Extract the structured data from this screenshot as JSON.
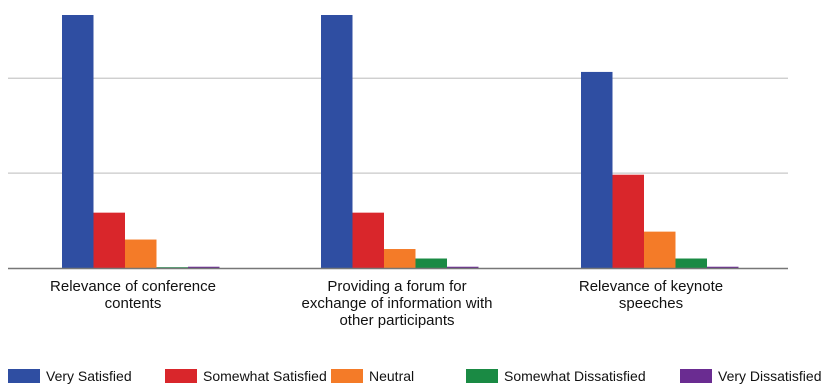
{
  "chart_data": {
    "type": "bar",
    "categories": [
      [
        "Relevance of conference",
        "contents"
      ],
      [
        "Providing a forum for",
        "exchange of information with",
        "other participants"
      ],
      [
        "Relevance of keynote",
        "speeches"
      ]
    ],
    "series": [
      {
        "name": "Very Satisfied",
        "color": "#2f4ea2",
        "values": [
          80,
          80,
          62
        ]
      },
      {
        "name": "Somewhat Satisfied",
        "color": "#d9262b",
        "values": [
          17.5,
          17.5,
          29.5
        ]
      },
      {
        "name": "Neutral",
        "color": "#f47b28",
        "values": [
          9,
          6,
          11.5
        ]
      },
      {
        "name": "Somewhat Dissatisfied",
        "color": "#1a8a44",
        "values": [
          0,
          3,
          3
        ]
      },
      {
        "name": "Very Dissatisfied",
        "color": "#6a2c91",
        "values": [
          0.4,
          0.4,
          0.4
        ]
      }
    ],
    "ylim": [
      0,
      80
    ],
    "gridlines": [
      30,
      60
    ],
    "grid": true,
    "legend_position": "bottom"
  }
}
